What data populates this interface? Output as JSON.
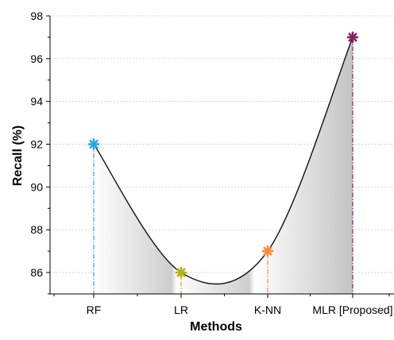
{
  "chart_data": {
    "type": "line",
    "title": "",
    "xlabel": "Methods",
    "ylabel": "Recall (%)",
    "categories": [
      "RF",
      "LR",
      "K-NN",
      "MLR [Proposed]"
    ],
    "series": [
      {
        "values": [
          92,
          86,
          87,
          97
        ]
      }
    ],
    "point_colors": [
      "#2aa6ee",
      "#b5b019",
      "#ff8a3a",
      "#8b2260"
    ],
    "ylim": [
      85,
      98
    ],
    "yticks": [
      86,
      88,
      90,
      92,
      94,
      96,
      98
    ],
    "grid": true,
    "area_fill": true,
    "drop_lines": true,
    "legend": "none"
  }
}
